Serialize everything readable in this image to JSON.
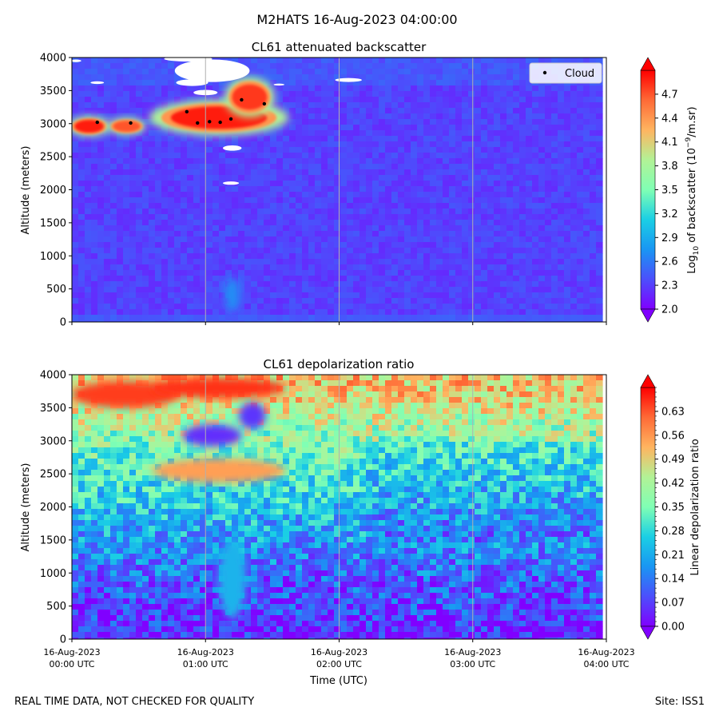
{
  "figure": {
    "suptitle": "M2HATS 16-Aug-2023 04:00:00",
    "footer_left": "REAL TIME DATA, NOT CHECKED FOR QUALITY",
    "footer_right": "Site: ISS1"
  },
  "chart_data": [
    {
      "type": "heatmap",
      "title": "CL61 attenuated backscatter",
      "ylabel": "Altitude (meters)",
      "xlabel": "",
      "ylim": [
        0,
        4000
      ],
      "yticks": [
        0,
        500,
        1000,
        1500,
        2000,
        2500,
        3000,
        3500,
        4000
      ],
      "x_range_hours": [
        0,
        4
      ],
      "x_data_end_hours": 3.94,
      "vertical_gridlines_hours": [
        1,
        2,
        3
      ],
      "colorbar": {
        "label_prefix": "Log",
        "label_sub": "10",
        "label_mid": " of backscatter (10",
        "label_sup": "−9",
        "label_suffix": "/m.sr)",
        "min": 2.0,
        "max": 5.0,
        "ticks": [
          "2.0",
          "2.3",
          "2.6",
          "2.9",
          "3.2",
          "3.5",
          "3.8",
          "4.1",
          "4.4",
          "4.7"
        ],
        "extend": "both",
        "colormap": "rainbow"
      },
      "legend": {
        "label": "Cloud",
        "position": "top-right"
      },
      "cloud_points": [
        {
          "t": 0.19,
          "alt": 3020
        },
        {
          "t": 0.44,
          "alt": 3010
        },
        {
          "t": 0.86,
          "alt": 3180
        },
        {
          "t": 0.94,
          "alt": 3010
        },
        {
          "t": 1.03,
          "alt": 3030
        },
        {
          "t": 1.11,
          "alt": 3020
        },
        {
          "t": 1.19,
          "alt": 3070
        },
        {
          "t": 1.27,
          "alt": 3360
        },
        {
          "t": 1.44,
          "alt": 3300
        }
      ],
      "features": [
        {
          "label": "cloud-layer-left-1",
          "t": 0.13,
          "alt": 2960,
          "dt": 0.11,
          "dalt": 95,
          "level": 4.9
        },
        {
          "label": "cloud-layer-left-2",
          "t": 0.41,
          "alt": 2960,
          "dt": 0.1,
          "dalt": 80,
          "level": 4.7
        },
        {
          "label": "cloud-layer-main",
          "t": 1.1,
          "alt": 3090,
          "dt": 0.36,
          "dalt": 170,
          "level": 4.9
        },
        {
          "label": "cloud-layer-main-right",
          "t": 1.33,
          "alt": 3400,
          "dt": 0.13,
          "dalt": 190,
          "level": 4.8
        },
        {
          "label": "plume-lower",
          "t": 1.2,
          "alt": 420,
          "dt": 0.06,
          "dalt": 260,
          "level": 2.7
        }
      ],
      "missing_data_patches": [
        {
          "t": 1.05,
          "alt": 3800,
          "dt": 0.28,
          "dalt": 170
        },
        {
          "t": 0.87,
          "alt": 3980,
          "dt": 0.18,
          "dalt": 40
        },
        {
          "t": 0.9,
          "alt": 3620,
          "dt": 0.12,
          "dalt": 50
        },
        {
          "t": 1.0,
          "alt": 3470,
          "dt": 0.09,
          "dalt": 40
        },
        {
          "t": 1.2,
          "alt": 2630,
          "dt": 0.07,
          "dalt": 40
        },
        {
          "t": 1.19,
          "alt": 2100,
          "dt": 0.06,
          "dalt": 25
        },
        {
          "t": 2.07,
          "alt": 3660,
          "dt": 0.1,
          "dalt": 30
        },
        {
          "t": 0.03,
          "alt": 3950,
          "dt": 0.04,
          "dalt": 20
        },
        {
          "t": 0.19,
          "alt": 3620,
          "dt": 0.05,
          "dalt": 20
        },
        {
          "t": 1.55,
          "alt": 3590,
          "dt": 0.04,
          "dalt": 15
        }
      ]
    },
    {
      "type": "heatmap",
      "title": "CL61 depolarization ratio",
      "ylabel": "Altitude (meters)",
      "xlabel": "Time (UTC)",
      "ylim": [
        0,
        4000
      ],
      "yticks": [
        0,
        500,
        1000,
        1500,
        2000,
        2500,
        3000,
        3500,
        4000
      ],
      "x_range_hours": [
        0,
        4
      ],
      "x_data_end_hours": 3.94,
      "vertical_gridlines_hours": [
        1,
        2,
        3
      ],
      "xtick_labels": [
        {
          "date": "16-Aug-2023",
          "time": "00:00 UTC"
        },
        {
          "date": "16-Aug-2023",
          "time": "01:00 UTC"
        },
        {
          "date": "16-Aug-2023",
          "time": "02:00 UTC"
        },
        {
          "date": "16-Aug-2023",
          "time": "03:00 UTC"
        },
        {
          "date": "16-Aug-2023",
          "time": "04:00 UTC"
        }
      ],
      "colorbar": {
        "label": "Linear depolarization ratio",
        "min": 0.0,
        "max": 0.7,
        "ticks": [
          "0.00",
          "0.07",
          "0.14",
          "0.21",
          "0.28",
          "0.35",
          "0.42",
          "0.49",
          "0.56",
          "0.63"
        ],
        "extend": "both",
        "colormap": "rainbow"
      },
      "profile": [
        {
          "alt": 0,
          "ratio": 0.04
        },
        {
          "alt": 300,
          "ratio": 0.06
        },
        {
          "alt": 800,
          "ratio": 0.1
        },
        {
          "alt": 1300,
          "ratio": 0.16
        },
        {
          "alt": 1800,
          "ratio": 0.22
        },
        {
          "alt": 2300,
          "ratio": 0.28
        },
        {
          "alt": 2800,
          "ratio": 0.34
        },
        {
          "alt": 3300,
          "ratio": 0.42
        },
        {
          "alt": 3700,
          "ratio": 0.5
        },
        {
          "alt": 4000,
          "ratio": 0.52
        }
      ],
      "features": [
        {
          "label": "low-depol-ring",
          "t": 1.05,
          "alt": 3080,
          "dt": 0.22,
          "dalt": 160,
          "level": 0.05
        },
        {
          "label": "low-depol-ring-right",
          "t": 1.35,
          "alt": 3380,
          "dt": 0.1,
          "dalt": 200,
          "level": 0.06
        },
        {
          "label": "high-depol-top-left",
          "t": 0.4,
          "alt": 3700,
          "dt": 0.4,
          "dalt": 200,
          "level": 0.65
        },
        {
          "label": "high-depol-top-mid",
          "t": 1.1,
          "alt": 3800,
          "dt": 0.5,
          "dalt": 150,
          "level": 0.66
        },
        {
          "label": "high-depol-band",
          "t": 1.1,
          "alt": 2550,
          "dt": 0.5,
          "dalt": 180,
          "level": 0.55
        },
        {
          "label": "plume-column",
          "t": 1.2,
          "alt": 900,
          "dt": 0.1,
          "dalt": 600,
          "level": 0.22
        }
      ]
    }
  ]
}
